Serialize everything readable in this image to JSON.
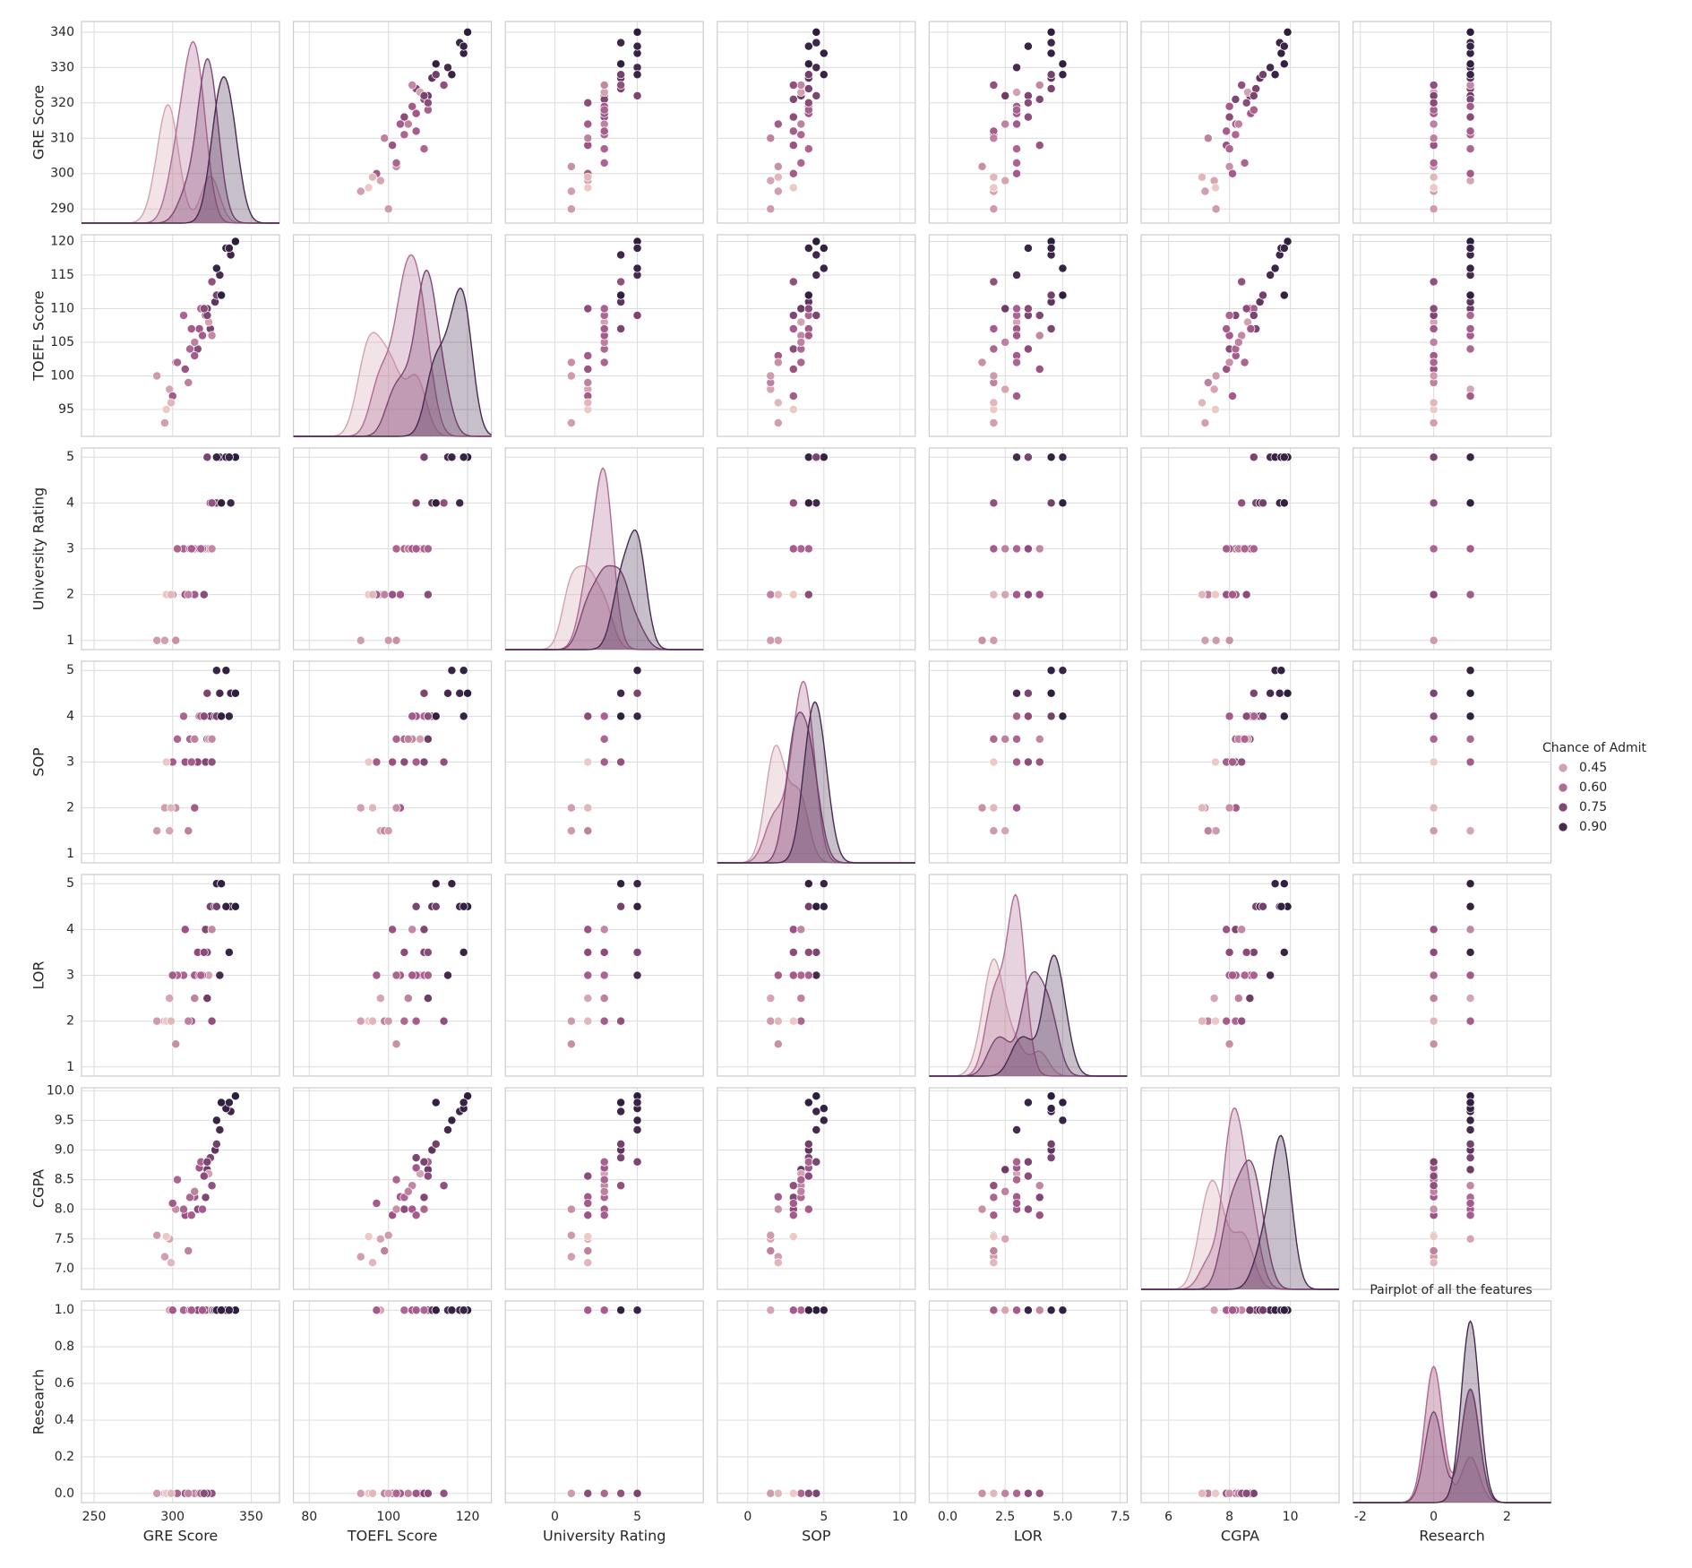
{
  "chart_data": {
    "type": "pairplot",
    "title": "Pairplot of all the features",
    "grid": true,
    "hue": {
      "name": "Chance of Admit",
      "palette": [
        "#ecc9c4",
        "#a3588a",
        "#2d1e3e"
      ],
      "lim": [
        0.34,
        0.97
      ],
      "ticks": [
        0.45,
        {
          "value": 0.6,
          "label": "0.60"
        },
        0.75,
        {
          "value": 0.9,
          "label": "0.90"
        }
      ],
      "values": [
        0.92,
        0.76,
        0.72,
        0.8,
        0.65,
        0.9,
        0.75,
        0.68,
        0.5,
        0.45,
        0.52,
        0.84,
        0.78,
        0.62,
        0.61,
        0.54,
        0.66,
        0.65,
        0.63,
        0.62,
        0.64,
        0.7,
        0.94,
        0.97,
        0.95,
        0.94,
        0.76,
        0.44,
        0.46,
        0.54,
        0.65,
        0.47,
        0.34,
        0.39,
        0.96,
        0.72
      ]
    },
    "variables": [
      {
        "name": "GRE Score",
        "xlim": [
          242,
          368
        ],
        "xticks": [
          250,
          300,
          350
        ],
        "ylim": [
          286,
          343
        ],
        "yticks": [
          290,
          300,
          310,
          320,
          330,
          340
        ],
        "values": [
          337,
          324,
          316,
          322,
          314,
          330,
          321,
          308,
          302,
          323,
          325,
          327,
          328,
          307,
          311,
          314,
          317,
          319,
          318,
          303,
          312,
          325,
          328,
          340,
          334,
          336,
          322,
          298,
          295,
          310,
          300,
          290,
          296,
          299,
          331,
          320
        ]
      },
      {
        "name": "TOEFL Score",
        "xlim": [
          76,
          126
        ],
        "xticks": [
          80,
          100,
          120
        ],
        "ylim": [
          91,
          121
        ],
        "yticks": [
          95,
          100,
          105,
          110,
          115,
          120
        ],
        "values": [
          118,
          107,
          104,
          110,
          103,
          115,
          109,
          101,
          102,
          108,
          106,
          111,
          112,
          109,
          104,
          105,
          107,
          106,
          110,
          102,
          107,
          114,
          116,
          120,
          119,
          119,
          109,
          98,
          93,
          99,
          97,
          100,
          95,
          96,
          112,
          110
        ]
      },
      {
        "name": "University Rating",
        "xlim": [
          -3,
          9
        ],
        "xticks": [
          0,
          5
        ],
        "ylim": [
          0.8,
          5.2
        ],
        "yticks": [
          1,
          2,
          3,
          4,
          5
        ],
        "values": [
          4,
          4,
          3,
          3,
          2,
          5,
          3,
          2,
          1,
          3,
          3,
          4,
          4,
          3,
          3,
          3,
          3,
          3,
          3,
          3,
          3,
          4,
          5,
          5,
          5,
          5,
          5,
          2,
          1,
          2,
          2,
          1,
          2,
          2,
          4,
          2
        ]
      },
      {
        "name": "SOP",
        "xlim": [
          -2,
          11
        ],
        "xticks": [
          0,
          5,
          10
        ],
        "ylim": [
          0.8,
          5.2
        ],
        "yticks": [
          1,
          2,
          3,
          4,
          5
        ],
        "values": [
          4.5,
          4,
          3,
          3.5,
          2,
          4.5,
          3,
          3,
          2,
          3.5,
          3.5,
          4,
          4,
          4,
          3.5,
          3.5,
          4,
          4,
          4,
          3.5,
          3,
          3,
          5,
          4.5,
          5,
          4,
          4.5,
          1.5,
          2,
          1.5,
          3,
          1.5,
          3,
          2,
          4,
          4
        ]
      },
      {
        "name": "LOR",
        "xlim": [
          -0.8,
          7.8
        ],
        "xticks": [
          {
            "value": 0,
            "label": "0.0"
          },
          2.5,
          {
            "value": 5,
            "label": "5.0"
          },
          7.5
        ],
        "ylim": [
          0.8,
          5.2
        ],
        "yticks": [
          1,
          2,
          3,
          4,
          5
        ],
        "values": [
          4.5,
          4.5,
          3.5,
          2.5,
          3,
          3,
          4,
          4,
          1.5,
          3,
          4,
          4.5,
          4.5,
          3,
          2,
          2.5,
          3,
          3,
          3,
          3,
          2,
          2,
          5,
          4.5,
          4.5,
          3.5,
          3.5,
          2.5,
          2,
          2,
          3,
          2,
          2,
          2,
          5,
          3.5
        ]
      },
      {
        "name": "CGPA",
        "xlim": [
          5.1,
          11.6
        ],
        "xticks": [
          6,
          8,
          10
        ],
        "ylim": [
          6.65,
          10.05
        ],
        "yticks": [
          {
            "value": 7,
            "label": "7.0"
          },
          7.5,
          {
            "value": 8,
            "label": "8.0"
          },
          8.5,
          {
            "value": 9,
            "label": "9.0"
          },
          9.5,
          {
            "value": 10,
            "label": "10.0"
          }
        ],
        "values": [
          9.65,
          8.87,
          8.0,
          8.67,
          8.21,
          9.34,
          8.2,
          7.9,
          8.0,
          8.6,
          8.4,
          9.0,
          9.1,
          8.0,
          8.2,
          8.3,
          8.7,
          8.0,
          8.8,
          8.5,
          7.9,
          8.4,
          9.5,
          9.91,
          9.7,
          9.8,
          8.8,
          7.5,
          7.2,
          7.3,
          8.1,
          7.56,
          7.54,
          7.1,
          9.8,
          8.56
        ]
      },
      {
        "name": "Research",
        "xlim": [
          -2.2,
          3.2
        ],
        "xticks": [
          -2,
          0,
          2
        ],
        "ylim": [
          -0.05,
          1.05
        ],
        "yticks": [
          {
            "value": 0,
            "label": "0.0"
          },
          0.2,
          0.4,
          0.6,
          0.8,
          {
            "value": 1,
            "label": "1.0"
          }
        ],
        "values": [
          1,
          1,
          1,
          1,
          0,
          1,
          1,
          0,
          0,
          0,
          1,
          1,
          1,
          1,
          1,
          0,
          0,
          1,
          0,
          0,
          1,
          0,
          1,
          1,
          1,
          1,
          0,
          1,
          0,
          0,
          1,
          0,
          0,
          0,
          1,
          0
        ]
      }
    ]
  }
}
